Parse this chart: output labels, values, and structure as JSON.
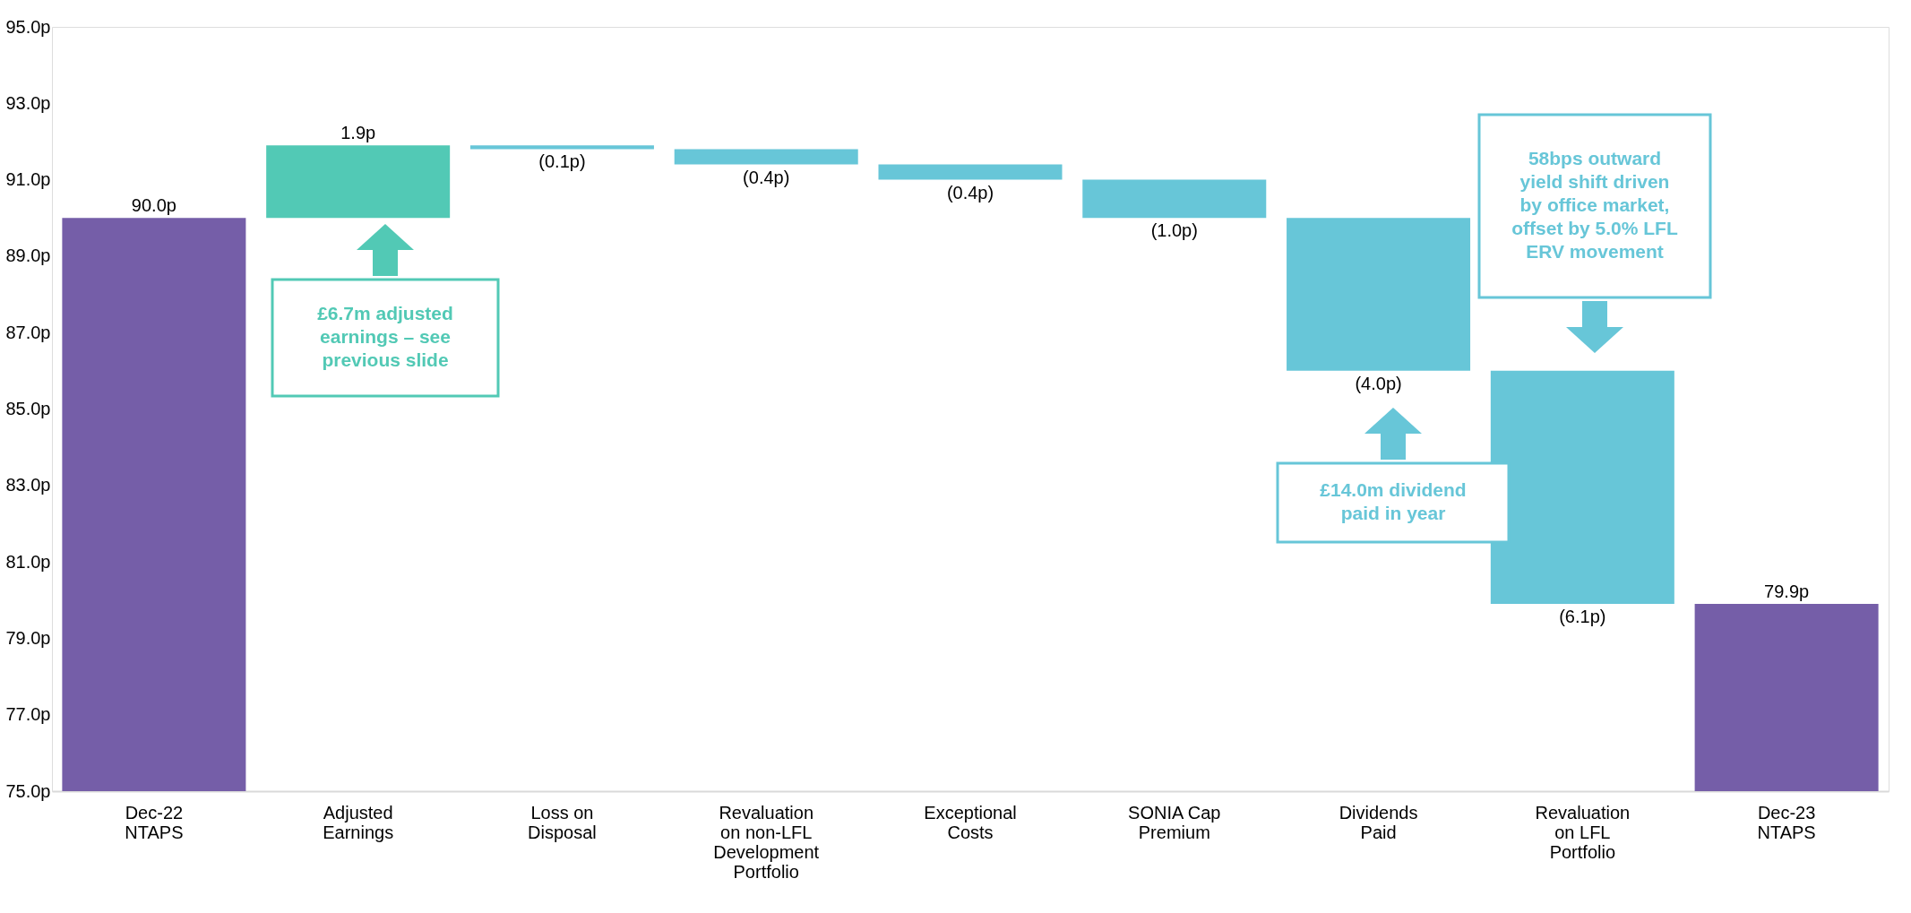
{
  "chart_data": {
    "type": "bar",
    "categories": [
      "Dec-22 NTAPS",
      "Adjusted Earnings",
      "Loss on Disposal",
      "Revaluation on non-LFL Development Portfolio",
      "Exceptional Costs",
      "SONIA Cap Premium",
      "Dividends Paid",
      "Revaluation on LFL Portfolio",
      "Dec-23 NTAPS"
    ],
    "values": [
      90.0,
      1.9,
      -0.1,
      -0.4,
      -0.4,
      -1.0,
      -4.0,
      -6.1,
      79.9
    ],
    "base": [
      null,
      90.0,
      91.9,
      91.8,
      91.4,
      91.0,
      90.0,
      86.0,
      null
    ],
    "colors": [
      "#755ea8",
      "#52c9b5",
      "#67c6d8",
      "#67c6d8",
      "#67c6d8",
      "#67c6d8",
      "#67c6d8",
      "#67c6d8",
      "#755ea8"
    ],
    "value_labels": [
      "90.0p",
      "1.9p",
      "(0.1p)",
      "(0.4p)",
      "(0.4p)",
      "(1.0p)",
      "(4.0p)",
      "(6.1p)",
      "79.9p"
    ],
    "ylim": [
      75,
      95
    ],
    "yticks": [
      {
        "value": 75,
        "label": "75.0p"
      },
      {
        "value": 77,
        "label": "77.0p"
      },
      {
        "value": 79,
        "label": "79.0p"
      },
      {
        "value": 81,
        "label": "81.0p"
      },
      {
        "value": 83,
        "label": "83.0p"
      },
      {
        "value": 85,
        "label": "85.0p"
      },
      {
        "value": 87,
        "label": "87.0p"
      },
      {
        "value": 89,
        "label": "89.0p"
      },
      {
        "value": 91,
        "label": "91.0p"
      },
      {
        "value": 93,
        "label": "93.0p"
      },
      {
        "value": 95,
        "label": "95.0p"
      }
    ],
    "grid": false,
    "annotations": [
      "£6.7m adjusted earnings – see previous slide",
      "£14.0m dividend paid in year",
      "58bps outward yield shift driven by office market, offset by 5.0% LFL ERV movement"
    ]
  }
}
